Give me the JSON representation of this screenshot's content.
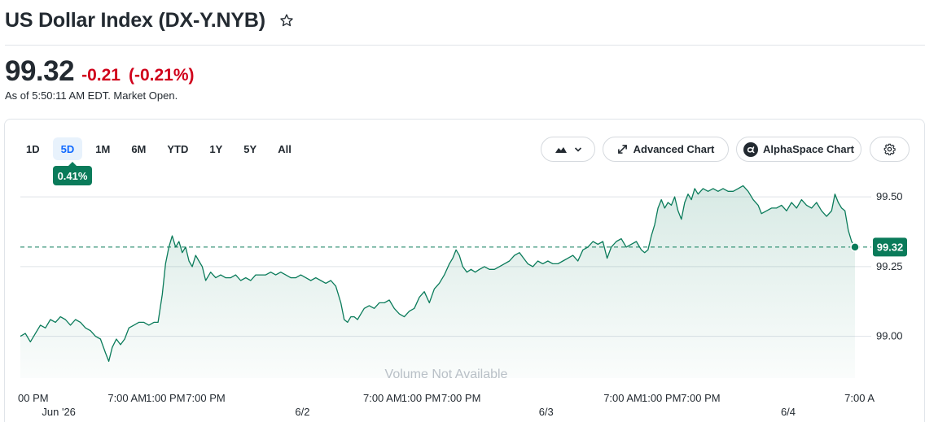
{
  "header": {
    "title": "US Dollar Index (DX-Y.NYB)",
    "star_icon": "star-icon"
  },
  "quote": {
    "price": "99.32",
    "change": "-0.21",
    "change_percent": "(-0.21%)",
    "as_of": "As of 5:50:11 AM EDT. Market Open.",
    "change_color": "#d0021b"
  },
  "ranges": [
    "1D",
    "5D",
    "1M",
    "6M",
    "YTD",
    "1Y",
    "5Y",
    "All"
  ],
  "selected_range": "5D",
  "performance_badge": "0.41%",
  "toolbar": {
    "chart_type_icon": "mountain-chart-icon",
    "advanced_chart_label": "Advanced Chart",
    "alphaspace_chart_label": "AlphaSpace Chart",
    "settings_icon": "gear-icon"
  },
  "chart_data": {
    "type": "area",
    "title": "",
    "xlabel": "",
    "ylabel": "",
    "ylim": [
      98.85,
      99.55
    ],
    "y_ticks": [
      99.0,
      99.25,
      99.5
    ],
    "y_tick_labels": [
      "99.00",
      "99.25",
      "99.50"
    ],
    "x_time_ticks": [
      {
        "label": "00 PM",
        "x": 0.0
      },
      {
        "label": "7:00 AM",
        "x": 0.128
      },
      {
        "label": "1:00 PM",
        "x": 0.174
      },
      {
        "label": "7:00 PM",
        "x": 0.222
      },
      {
        "label": "7:00 AM",
        "x": 0.434
      },
      {
        "label": "1:00 PM",
        "x": 0.48
      },
      {
        "label": "7:00 PM",
        "x": 0.528
      },
      {
        "label": "7:00 AM",
        "x": 0.722
      },
      {
        "label": "1:00 PM",
        "x": 0.768
      },
      {
        "label": "7:00 PM",
        "x": 0.815
      },
      {
        "label": "7:00 A",
        "x": 1.0
      }
    ],
    "x_date_ticks": [
      {
        "label": "Jun '26",
        "x": 0.046
      },
      {
        "label": "6/2",
        "x": 0.338
      },
      {
        "label": "6/3",
        "x": 0.63
      },
      {
        "label": "6/4",
        "x": 0.92
      }
    ],
    "reference_line": 99.32,
    "last_value": 99.32,
    "last_value_label": "99.32",
    "watermark": "Volume Not Available",
    "grid": true,
    "series": [
      {
        "line_color": "#0a7b5a",
        "points": [
          [
            0.0,
            99.0
          ],
          [
            0.006,
            99.01
          ],
          [
            0.012,
            98.98
          ],
          [
            0.018,
            99.01
          ],
          [
            0.024,
            99.04
          ],
          [
            0.03,
            99.03
          ],
          [
            0.036,
            99.06
          ],
          [
            0.042,
            99.05
          ],
          [
            0.048,
            99.07
          ],
          [
            0.054,
            99.06
          ],
          [
            0.06,
            99.04
          ],
          [
            0.066,
            99.06
          ],
          [
            0.072,
            99.05
          ],
          [
            0.078,
            99.03
          ],
          [
            0.084,
            99.02
          ],
          [
            0.09,
            99.0
          ],
          [
            0.096,
            98.99
          ],
          [
            0.102,
            98.94
          ],
          [
            0.106,
            98.91
          ],
          [
            0.11,
            98.96
          ],
          [
            0.115,
            98.99
          ],
          [
            0.12,
            98.97
          ],
          [
            0.125,
            98.99
          ],
          [
            0.13,
            99.03
          ],
          [
            0.136,
            99.04
          ],
          [
            0.142,
            99.05
          ],
          [
            0.148,
            99.05
          ],
          [
            0.154,
            99.04
          ],
          [
            0.16,
            99.05
          ],
          [
            0.165,
            99.05
          ],
          [
            0.17,
            99.15
          ],
          [
            0.174,
            99.26
          ],
          [
            0.178,
            99.32
          ],
          [
            0.182,
            99.36
          ],
          [
            0.186,
            99.32
          ],
          [
            0.19,
            99.34
          ],
          [
            0.194,
            99.3
          ],
          [
            0.198,
            99.32
          ],
          [
            0.202,
            99.27
          ],
          [
            0.206,
            99.25
          ],
          [
            0.21,
            99.29
          ],
          [
            0.214,
            99.27
          ],
          [
            0.218,
            99.25
          ],
          [
            0.222,
            99.2
          ],
          [
            0.228,
            99.23
          ],
          [
            0.234,
            99.21
          ],
          [
            0.24,
            99.22
          ],
          [
            0.246,
            99.21
          ],
          [
            0.252,
            99.21
          ],
          [
            0.258,
            99.22
          ],
          [
            0.264,
            99.2
          ],
          [
            0.27,
            99.21
          ],
          [
            0.276,
            99.2
          ],
          [
            0.282,
            99.22
          ],
          [
            0.288,
            99.22
          ],
          [
            0.294,
            99.22
          ],
          [
            0.3,
            99.23
          ],
          [
            0.306,
            99.22
          ],
          [
            0.312,
            99.23
          ],
          [
            0.318,
            99.22
          ],
          [
            0.324,
            99.21
          ],
          [
            0.33,
            99.21
          ],
          [
            0.336,
            99.22
          ],
          [
            0.342,
            99.21
          ],
          [
            0.348,
            99.2
          ],
          [
            0.354,
            99.21
          ],
          [
            0.36,
            99.2
          ],
          [
            0.366,
            99.19
          ],
          [
            0.372,
            99.2
          ],
          [
            0.378,
            99.18
          ],
          [
            0.384,
            99.12
          ],
          [
            0.388,
            99.06
          ],
          [
            0.392,
            99.05
          ],
          [
            0.396,
            99.07
          ],
          [
            0.4,
            99.07
          ],
          [
            0.404,
            99.06
          ],
          [
            0.408,
            99.08
          ],
          [
            0.412,
            99.1
          ],
          [
            0.418,
            99.11
          ],
          [
            0.424,
            99.1
          ],
          [
            0.43,
            99.12
          ],
          [
            0.436,
            99.12
          ],
          [
            0.442,
            99.13
          ],
          [
            0.448,
            99.1
          ],
          [
            0.454,
            99.08
          ],
          [
            0.46,
            99.07
          ],
          [
            0.466,
            99.09
          ],
          [
            0.472,
            99.1
          ],
          [
            0.478,
            99.14
          ],
          [
            0.484,
            99.16
          ],
          [
            0.49,
            99.12
          ],
          [
            0.496,
            99.17
          ],
          [
            0.502,
            99.19
          ],
          [
            0.508,
            99.22
          ],
          [
            0.514,
            99.26
          ],
          [
            0.518,
            99.28
          ],
          [
            0.522,
            99.31
          ],
          [
            0.526,
            99.29
          ],
          [
            0.53,
            99.25
          ],
          [
            0.535,
            99.23
          ],
          [
            0.54,
            99.24
          ],
          [
            0.545,
            99.23
          ],
          [
            0.55,
            99.24
          ],
          [
            0.556,
            99.25
          ],
          [
            0.562,
            99.24
          ],
          [
            0.568,
            99.24
          ],
          [
            0.574,
            99.25
          ],
          [
            0.58,
            99.26
          ],
          [
            0.586,
            99.27
          ],
          [
            0.592,
            99.29
          ],
          [
            0.598,
            99.3
          ],
          [
            0.603,
            99.28
          ],
          [
            0.608,
            99.26
          ],
          [
            0.614,
            99.25
          ],
          [
            0.62,
            99.27
          ],
          [
            0.626,
            99.26
          ],
          [
            0.632,
            99.27
          ],
          [
            0.638,
            99.26
          ],
          [
            0.644,
            99.26
          ],
          [
            0.65,
            99.27
          ],
          [
            0.656,
            99.28
          ],
          [
            0.662,
            99.29
          ],
          [
            0.668,
            99.27
          ],
          [
            0.674,
            99.31
          ],
          [
            0.68,
            99.32
          ],
          [
            0.686,
            99.34
          ],
          [
            0.692,
            99.33
          ],
          [
            0.698,
            99.34
          ],
          [
            0.703,
            99.28
          ],
          [
            0.708,
            99.32
          ],
          [
            0.714,
            99.34
          ],
          [
            0.72,
            99.35
          ],
          [
            0.726,
            99.32
          ],
          [
            0.732,
            99.33
          ],
          [
            0.738,
            99.34
          ],
          [
            0.744,
            99.31
          ],
          [
            0.748,
            99.3
          ],
          [
            0.752,
            99.31
          ],
          [
            0.756,
            99.36
          ],
          [
            0.76,
            99.4
          ],
          [
            0.764,
            99.46
          ],
          [
            0.768,
            99.49
          ],
          [
            0.772,
            99.46
          ],
          [
            0.776,
            99.48
          ],
          [
            0.78,
            99.47
          ],
          [
            0.784,
            99.5
          ],
          [
            0.788,
            99.45
          ],
          [
            0.792,
            99.42
          ],
          [
            0.796,
            99.48
          ],
          [
            0.8,
            99.51
          ],
          [
            0.804,
            99.49
          ],
          [
            0.808,
            99.53
          ],
          [
            0.812,
            99.51
          ],
          [
            0.818,
            99.53
          ],
          [
            0.824,
            99.52
          ],
          [
            0.83,
            99.53
          ],
          [
            0.836,
            99.52
          ],
          [
            0.842,
            99.53
          ],
          [
            0.848,
            99.52
          ],
          [
            0.854,
            99.52
          ],
          [
            0.86,
            99.53
          ],
          [
            0.866,
            99.54
          ],
          [
            0.872,
            99.52
          ],
          [
            0.878,
            99.49
          ],
          [
            0.884,
            99.47
          ],
          [
            0.888,
            99.44
          ],
          [
            0.894,
            99.45
          ],
          [
            0.9,
            99.46
          ],
          [
            0.906,
            99.46
          ],
          [
            0.912,
            99.47
          ],
          [
            0.918,
            99.45
          ],
          [
            0.924,
            99.48
          ],
          [
            0.93,
            99.46
          ],
          [
            0.936,
            99.49
          ],
          [
            0.942,
            99.47
          ],
          [
            0.948,
            99.46
          ],
          [
            0.954,
            99.48
          ],
          [
            0.96,
            99.45
          ],
          [
            0.966,
            99.43
          ],
          [
            0.972,
            99.45
          ],
          [
            0.976,
            99.51
          ],
          [
            0.98,
            99.48
          ],
          [
            0.984,
            99.46
          ],
          [
            0.988,
            99.45
          ],
          [
            0.992,
            99.38
          ],
          [
            0.996,
            99.34
          ],
          [
            1.0,
            99.32
          ]
        ]
      }
    ]
  },
  "colors": {
    "accent": "#0a7b5a",
    "selected_range_bg": "#e8f2fc",
    "selected_range_text": "#0f69ff",
    "negative": "#d0021b"
  }
}
